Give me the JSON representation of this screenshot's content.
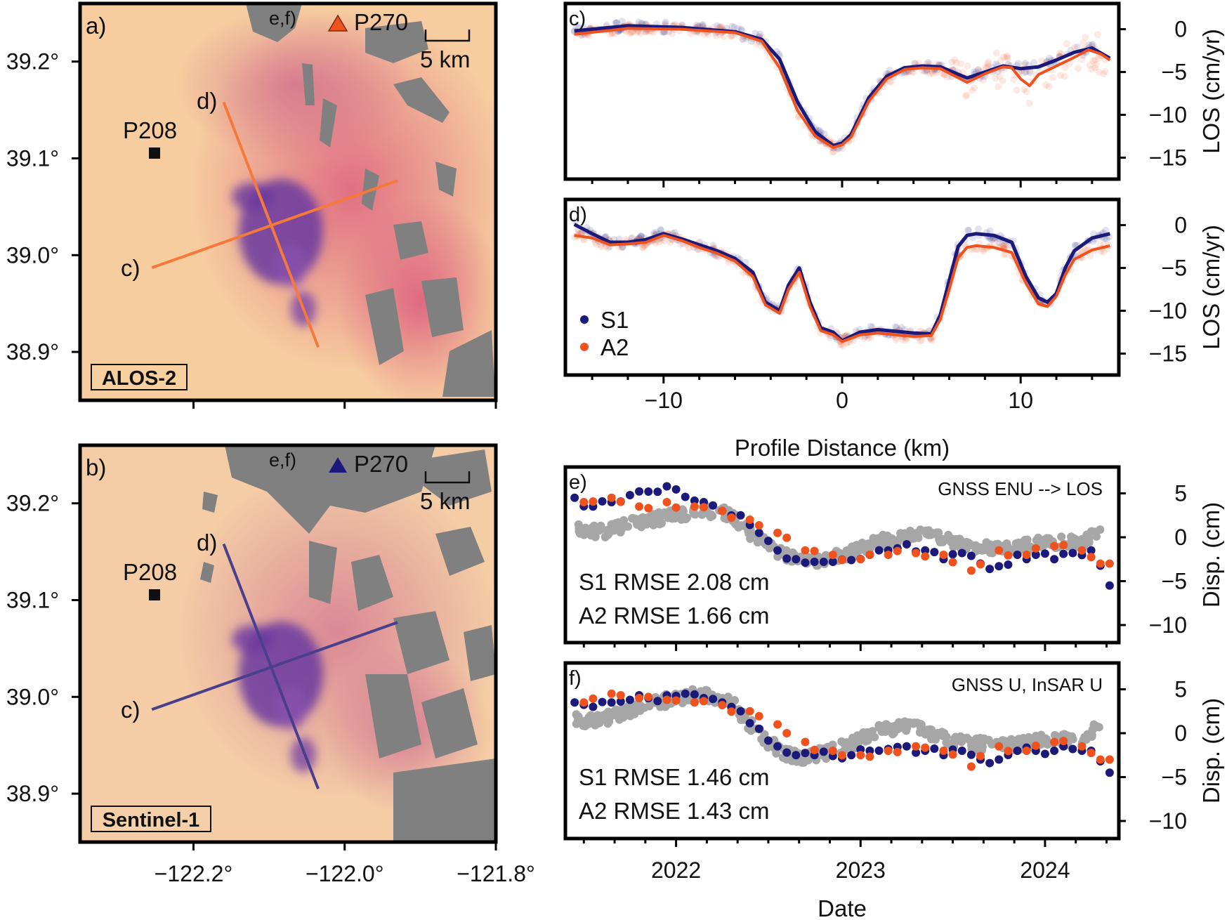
{
  "colors": {
    "s1": "#1b1a7a",
    "a2": "#f0521e",
    "gnss": "#a6a6a6",
    "map_background": "#f6c89a",
    "mask": "#7f7f7f",
    "subsidence": "#5b2f9c",
    "a2_profile": "#f5793a",
    "s1_profile": "#4a3f8a"
  },
  "chart_data": [
    {
      "panel": "a)",
      "type": "map",
      "sensor_label": "ALOS-2",
      "profile_color": "a2_profile",
      "station_marker_color": "a2",
      "stations": [
        {
          "name": "P270",
          "note": "e,f)",
          "lon": -122.01,
          "lat": 39.235,
          "marker": "triangle"
        },
        {
          "name": "P208",
          "lon": -122.255,
          "lat": 39.102,
          "marker": "square"
        }
      ],
      "profiles": [
        {
          "name": "c)",
          "lon": [
            -122.255,
            -121.93
          ],
          "lat": [
            38.987,
            39.077
          ]
        },
        {
          "name": "d)",
          "lon": [
            -122.16,
            -122.035
          ],
          "lat": [
            39.158,
            38.905
          ]
        }
      ],
      "scale_bar": "5 km",
      "x_ticks": [
        "−122.2°",
        "−122.0°",
        "−121.8°"
      ],
      "x_tick_values": [
        -122.2,
        -122.0,
        -121.8
      ],
      "y_ticks": [
        "39.2°",
        "39.1°",
        "39.0°",
        "38.9°"
      ],
      "y_tick_values": [
        39.2,
        39.1,
        39.0,
        38.9
      ],
      "xlim": [
        -122.35,
        -121.8
      ],
      "ylim": [
        38.85,
        39.26
      ]
    },
    {
      "panel": "b)",
      "type": "map",
      "sensor_label": "Sentinel-1",
      "profile_color": "s1_profile",
      "station_marker_color": "s1",
      "stations": [
        {
          "name": "P270",
          "note": "e,f)",
          "lon": -122.01,
          "lat": 39.235,
          "marker": "triangle"
        },
        {
          "name": "P208",
          "lon": -122.255,
          "lat": 39.102,
          "marker": "square"
        }
      ],
      "profiles": [
        {
          "name": "c)",
          "lon": [
            -122.255,
            -121.93
          ],
          "lat": [
            38.987,
            39.077
          ]
        },
        {
          "name": "d)",
          "lon": [
            -122.16,
            -122.035
          ],
          "lat": [
            39.158,
            38.905
          ]
        }
      ],
      "scale_bar": "5 km",
      "x_ticks": [
        "−122.2°",
        "−122.0°",
        "−121.8°"
      ],
      "x_tick_values": [
        -122.2,
        -122.0,
        -121.8
      ],
      "y_ticks": [
        "39.2°",
        "39.1°",
        "39.0°",
        "38.9°"
      ],
      "y_tick_values": [
        39.2,
        39.1,
        39.0,
        38.9
      ],
      "xlim": [
        -122.35,
        -121.8
      ],
      "ylim": [
        38.85,
        39.26
      ]
    },
    {
      "panel": "c)",
      "type": "line",
      "ylabel": "LOS (cm/yr)",
      "xlim": [
        -15.5,
        15.5
      ],
      "ylim": [
        -17.5,
        3
      ],
      "y_ticks": [
        "0",
        "−5",
        "−10",
        "−15"
      ],
      "y_tick_values": [
        0,
        -5,
        -10,
        -15
      ],
      "series": [
        {
          "name": "S1",
          "color": "s1",
          "x": [
            -15,
            -12,
            -9,
            -6,
            -4.5,
            -3.5,
            -2.5,
            -1.5,
            -0.5,
            0,
            0.5,
            1.5,
            2.5,
            3.5,
            4.5,
            5.5,
            7,
            8,
            9,
            10,
            11,
            12,
            13,
            14,
            15
          ],
          "y": [
            -0.2,
            0.4,
            0.2,
            -0.3,
            -1.2,
            -3.5,
            -8.5,
            -12,
            -13.6,
            -13.3,
            -12.3,
            -8,
            -5.5,
            -4.5,
            -4.3,
            -4.4,
            -5.7,
            -5,
            -4.3,
            -4.6,
            -4.4,
            -3.6,
            -2.7,
            -2.2,
            -3.4
          ]
        },
        {
          "name": "A2",
          "color": "a2",
          "x": [
            -15,
            -12,
            -9,
            -6,
            -4.5,
            -3.5,
            -2.5,
            -1.5,
            -0.5,
            0,
            0.5,
            1.5,
            2.5,
            3.5,
            4.5,
            5.5,
            7,
            8,
            9,
            9.5,
            10,
            10.5,
            11,
            12,
            13,
            13.8,
            14.5,
            15
          ],
          "y": [
            -0.6,
            0.1,
            0.0,
            -0.4,
            -1.4,
            -4.5,
            -9.5,
            -12.5,
            -13.8,
            -13.5,
            -12.6,
            -8.4,
            -5.8,
            -4.7,
            -4.5,
            -4.6,
            -6.2,
            -5.2,
            -4.4,
            -4.5,
            -5.8,
            -6.6,
            -5.3,
            -4.3,
            -3.3,
            -2.4,
            -2.9,
            -3.6
          ]
        }
      ]
    },
    {
      "panel": "d)",
      "type": "line",
      "ylabel": "LOS (cm/yr)",
      "xlabel": "Profile Distance (km)",
      "xlim": [
        -15.5,
        15.5
      ],
      "ylim": [
        -17.5,
        3
      ],
      "x_ticks": [
        "−10",
        "0",
        "10"
      ],
      "x_tick_values": [
        -10,
        0,
        10
      ],
      "y_ticks": [
        "0",
        "−5",
        "−10",
        "−15"
      ],
      "y_tick_values": [
        0,
        -5,
        -10,
        -15
      ],
      "legend": "bottom-left",
      "series": [
        {
          "name": "S1",
          "color": "s1",
          "x": [
            -15,
            -14,
            -13,
            -12,
            -11,
            -10,
            -9,
            -8,
            -7,
            -6,
            -5,
            -4.3,
            -3.5,
            -3,
            -2.4,
            -1.8,
            -1.2,
            -0.5,
            0,
            1,
            2,
            3,
            4,
            5,
            5.5,
            6,
            6.5,
            7,
            7.5,
            8.5,
            9.5,
            10.3,
            11,
            11.5,
            12,
            12.5,
            13,
            14,
            15
          ],
          "y": [
            0.1,
            -1.0,
            -2.0,
            -2.0,
            -1.7,
            -1.0,
            -1.6,
            -2.3,
            -3.0,
            -3.9,
            -5.5,
            -9.0,
            -10.0,
            -7.0,
            -5.0,
            -9.0,
            -12.0,
            -12.5,
            -13.5,
            -12.5,
            -12.2,
            -12.4,
            -12.6,
            -12.7,
            -10.5,
            -6.5,
            -2.5,
            -1.2,
            -1.0,
            -1.2,
            -2.0,
            -6.0,
            -8.5,
            -9.0,
            -8.0,
            -5.0,
            -3.0,
            -1.5,
            -1.0
          ]
        },
        {
          "name": "A2",
          "color": "a2",
          "x": [
            -15,
            -14,
            -13,
            -12,
            -11,
            -10,
            -9,
            -8,
            -7,
            -6,
            -5,
            -4.3,
            -3.5,
            -3,
            -2.4,
            -1.8,
            -1.2,
            -0.5,
            0,
            1,
            2,
            3,
            4,
            5,
            5.5,
            6,
            6.5,
            7,
            7.5,
            8.5,
            9.5,
            10.3,
            11,
            11.5,
            12,
            12.5,
            13,
            14,
            15
          ],
          "y": [
            -1.2,
            -1.5,
            -2.3,
            -2.2,
            -2.0,
            -1.2,
            -1.8,
            -2.6,
            -3.3,
            -4.2,
            -6.0,
            -9.3,
            -10.3,
            -7.5,
            -5.5,
            -9.5,
            -12.3,
            -12.8,
            -13.6,
            -12.8,
            -12.6,
            -12.8,
            -13.0,
            -12.9,
            -11.0,
            -7.5,
            -3.8,
            -2.6,
            -2.4,
            -2.6,
            -3.2,
            -6.8,
            -9.2,
            -9.5,
            -8.3,
            -5.8,
            -4.0,
            -2.9,
            -2.4
          ]
        }
      ]
    },
    {
      "panel": "e)",
      "type": "scatter",
      "annotation": "GNSS ENU --> LOS",
      "ylabel": "Disp. (cm)",
      "xlim": [
        2021.4,
        2024.4
      ],
      "ylim": [
        -12,
        8
      ],
      "y_ticks": [
        "5",
        "0",
        "−5",
        "−10"
      ],
      "y_tick_values": [
        5,
        0,
        -5,
        -10
      ],
      "stats": [
        "S1 RMSE 2.08 cm",
        "A2 RMSE 1.66 cm"
      ],
      "series": [
        {
          "name": "GNSS",
          "color": "gnss",
          "x": [
            2021.45,
            2021.6,
            2021.8,
            2022.0,
            2022.15,
            2022.3,
            2022.4,
            2022.5,
            2022.6,
            2022.7,
            2022.8,
            2022.95,
            2023.1,
            2023.3,
            2023.4,
            2023.5,
            2023.6,
            2023.8,
            2024.0,
            2024.2,
            2024.3
          ],
          "y": [
            1.0,
            0.6,
            1.8,
            2.5,
            3.0,
            2.6,
            0.5,
            -1.0,
            -2.2,
            -2.8,
            -2.5,
            -1.8,
            -0.5,
            0.3,
            0.0,
            -0.5,
            -1.0,
            -1.3,
            -0.6,
            -0.6,
            0.6
          ]
        },
        {
          "name": "S1",
          "color": "s1",
          "x": [
            2021.45,
            2021.55,
            2021.65,
            2021.75,
            2021.85,
            2021.95,
            2022.05,
            2022.15,
            2022.25,
            2022.35,
            2022.45,
            2022.55,
            2022.65,
            2022.75,
            2022.85,
            2022.95,
            2023.05,
            2023.15,
            2023.25,
            2023.35,
            2023.45,
            2023.55,
            2023.65,
            2023.75,
            2023.85,
            2023.95,
            2024.05,
            2024.15,
            2024.25,
            2024.35
          ],
          "y": [
            4.5,
            3.5,
            4.0,
            4.8,
            5.2,
            5.8,
            4.6,
            4.0,
            3.0,
            2.5,
            0.5,
            -1.5,
            -2.5,
            -2.8,
            -2.8,
            -2.6,
            -2.0,
            -1.5,
            -0.8,
            -1.5,
            -2.5,
            -1.8,
            -3.0,
            -3.3,
            -2.0,
            -2.0,
            -2.5,
            -1.8,
            -1.5,
            -5.5
          ]
        },
        {
          "name": "A2",
          "color": "a2",
          "x": [
            2021.5,
            2021.65,
            2021.8,
            2021.95,
            2022.1,
            2022.25,
            2022.4,
            2022.55,
            2022.7,
            2022.85,
            2023.0,
            2023.15,
            2023.3,
            2023.45,
            2023.6,
            2023.75,
            2023.9,
            2024.05,
            2024.2,
            2024.3
          ],
          "y": [
            4.0,
            4.5,
            3.5,
            4.0,
            3.5,
            3.0,
            2.0,
            0.5,
            -1.5,
            -2.0,
            -2.5,
            -2.0,
            -1.8,
            -2.0,
            -3.8,
            -1.5,
            -2.0,
            -1.0,
            -1.5,
            -3.0
          ]
        }
      ]
    },
    {
      "panel": "f)",
      "type": "scatter",
      "annotation": "GNSS U, InSAR U",
      "ylabel": "Disp. (cm)",
      "xlabel": "Date",
      "xlim": [
        2021.4,
        2024.4
      ],
      "ylim": [
        -12,
        8
      ],
      "x_ticks": [
        "2022",
        "2023",
        "2024"
      ],
      "x_tick_values": [
        2022,
        2023,
        2024
      ],
      "y_ticks": [
        "5",
        "0",
        "−5",
        "−10"
      ],
      "y_tick_values": [
        5,
        0,
        -5,
        -10
      ],
      "stats": [
        "S1 RMSE 1.46 cm",
        "A2 RMSE 1.43 cm"
      ],
      "series": [
        {
          "name": "GNSS",
          "color": "gnss",
          "x": [
            2021.45,
            2021.6,
            2021.8,
            2022.0,
            2022.15,
            2022.3,
            2022.4,
            2022.5,
            2022.6,
            2022.7,
            2022.8,
            2022.95,
            2023.1,
            2023.3,
            2023.4,
            2023.5,
            2023.6,
            2023.8,
            2024.0,
            2024.2,
            2024.3
          ],
          "y": [
            1.5,
            1.5,
            3.0,
            4.0,
            4.5,
            3.5,
            1.0,
            -1.0,
            -2.5,
            -2.8,
            -2.3,
            -1.2,
            0.3,
            1.0,
            -0.3,
            -0.8,
            -1.2,
            -1.4,
            -0.8,
            -0.8,
            1.0
          ]
        },
        {
          "name": "S1",
          "color": "s1",
          "x": [
            2021.45,
            2021.55,
            2021.65,
            2021.75,
            2021.85,
            2021.95,
            2022.05,
            2022.15,
            2022.25,
            2022.35,
            2022.45,
            2022.55,
            2022.65,
            2022.75,
            2022.85,
            2022.95,
            2023.05,
            2023.15,
            2023.25,
            2023.35,
            2023.45,
            2023.55,
            2023.65,
            2023.75,
            2023.85,
            2023.95,
            2024.05,
            2024.15,
            2024.25,
            2024.35
          ],
          "y": [
            3.5,
            3.0,
            3.5,
            3.8,
            4.0,
            4.3,
            4.5,
            4.0,
            3.5,
            2.5,
            0.5,
            -1.5,
            -2.5,
            -2.5,
            -2.6,
            -2.5,
            -2.0,
            -1.8,
            -1.5,
            -2.0,
            -2.5,
            -2.0,
            -3.0,
            -3.0,
            -2.0,
            -2.0,
            -2.0,
            -1.8,
            -2.0,
            -4.5
          ]
        },
        {
          "name": "A2",
          "color": "a2",
          "x": [
            2021.5,
            2021.65,
            2021.8,
            2021.95,
            2022.1,
            2022.25,
            2022.4,
            2022.55,
            2022.7,
            2022.85,
            2023.0,
            2023.15,
            2023.3,
            2023.45,
            2023.6,
            2023.75,
            2023.9,
            2024.05,
            2024.2,
            2024.3
          ],
          "y": [
            3.5,
            4.5,
            4.0,
            3.8,
            3.5,
            3.2,
            2.5,
            1.0,
            -1.0,
            -2.0,
            -2.5,
            -2.0,
            -1.5,
            -2.0,
            -3.8,
            -1.5,
            -2.0,
            -1.0,
            -1.5,
            -3.0
          ]
        }
      ]
    }
  ]
}
